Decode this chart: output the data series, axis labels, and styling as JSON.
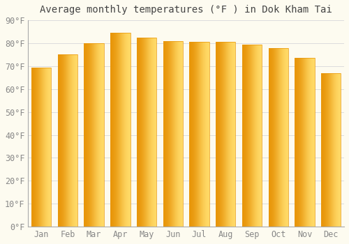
{
  "title": "Average monthly temperatures (°F ) in Dok Kham Tai",
  "months": [
    "Jan",
    "Feb",
    "Mar",
    "Apr",
    "May",
    "Jun",
    "Jul",
    "Aug",
    "Sep",
    "Oct",
    "Nov",
    "Dec"
  ],
  "values": [
    69.5,
    75.0,
    80.0,
    84.5,
    82.5,
    81.0,
    80.5,
    80.5,
    79.5,
    78.0,
    73.5,
    67.0
  ],
  "bar_color_center": "#FFD966",
  "bar_color_edge": "#E8960A",
  "background_color": "#FDFBF0",
  "grid_color": "#DDDDDD",
  "ylim": [
    0,
    90
  ],
  "yticks": [
    0,
    10,
    20,
    30,
    40,
    50,
    60,
    70,
    80,
    90
  ],
  "ytick_labels": [
    "0°F",
    "10°F",
    "20°F",
    "30°F",
    "40°F",
    "50°F",
    "60°F",
    "70°F",
    "80°F",
    "90°F"
  ],
  "title_fontsize": 10,
  "tick_fontsize": 8.5,
  "font_family": "monospace",
  "bar_width": 0.75
}
